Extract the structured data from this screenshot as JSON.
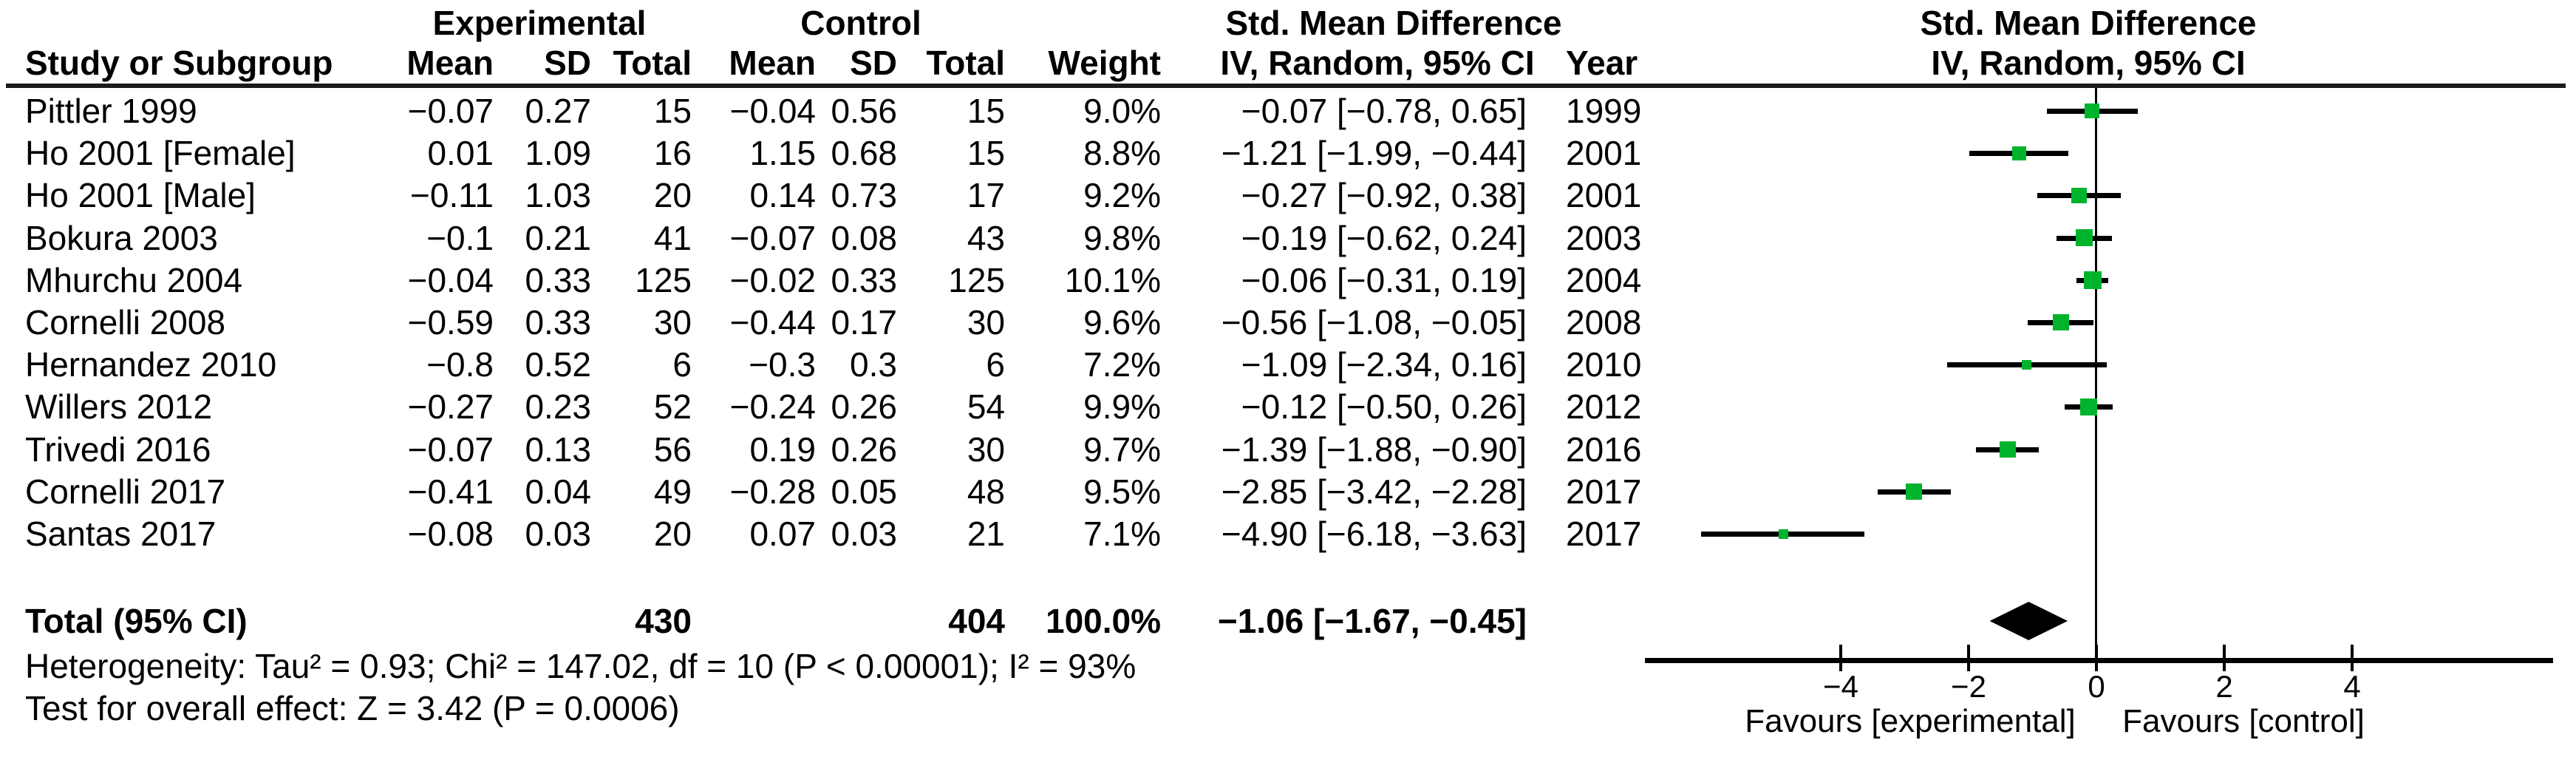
{
  "header": {
    "group_experimental": "Experimental",
    "group_control": "Control",
    "group_smd_left": "Std. Mean Difference",
    "group_smd_right": "Std. Mean Difference",
    "col_study": "Study or Subgroup",
    "col_mean_exp": "Mean",
    "col_sd_exp": "SD",
    "col_total_exp": "Total",
    "col_mean_ctrl": "Mean",
    "col_sd_ctrl": "SD",
    "col_total_ctrl": "Total",
    "col_weight": "Weight",
    "col_ci_left": "IV, Random, 95% CI",
    "col_year": "Year",
    "col_ci_right": "IV, Random, 95% CI"
  },
  "table": {
    "rows": [
      {
        "study": "Pittler 1999",
        "exp_mean": "−0.07",
        "exp_sd": "0.27",
        "exp_total": "15",
        "ctrl_mean": "−0.04",
        "ctrl_sd": "0.56",
        "ctrl_total": "15",
        "weight": "9.0%",
        "smd_ci": "−0.07 [−0.78, 0.65]",
        "year": "1999"
      },
      {
        "study": "Ho 2001 [Female]",
        "exp_mean": "0.01",
        "exp_sd": "1.09",
        "exp_total": "16",
        "ctrl_mean": "1.15",
        "ctrl_sd": "0.68",
        "ctrl_total": "15",
        "weight": "8.8%",
        "smd_ci": "−1.21 [−1.99, −0.44]",
        "year": "2001"
      },
      {
        "study": "Ho 2001 [Male]",
        "exp_mean": "−0.11",
        "exp_sd": "1.03",
        "exp_total": "20",
        "ctrl_mean": "0.14",
        "ctrl_sd": "0.73",
        "ctrl_total": "17",
        "weight": "9.2%",
        "smd_ci": "−0.27 [−0.92, 0.38]",
        "year": "2001"
      },
      {
        "study": "Bokura 2003",
        "exp_mean": "−0.1",
        "exp_sd": "0.21",
        "exp_total": "41",
        "ctrl_mean": "−0.07",
        "ctrl_sd": "0.08",
        "ctrl_total": "43",
        "weight": "9.8%",
        "smd_ci": "−0.19 [−0.62, 0.24]",
        "year": "2003"
      },
      {
        "study": "Mhurchu 2004",
        "exp_mean": "−0.04",
        "exp_sd": "0.33",
        "exp_total": "125",
        "ctrl_mean": "−0.02",
        "ctrl_sd": "0.33",
        "ctrl_total": "125",
        "weight": "10.1%",
        "smd_ci": "−0.06 [−0.31, 0.19]",
        "year": "2004"
      },
      {
        "study": "Cornelli 2008",
        "exp_mean": "−0.59",
        "exp_sd": "0.33",
        "exp_total": "30",
        "ctrl_mean": "−0.44",
        "ctrl_sd": "0.17",
        "ctrl_total": "30",
        "weight": "9.6%",
        "smd_ci": "−0.56 [−1.08, −0.05]",
        "year": "2008"
      },
      {
        "study": "Hernandez 2010",
        "exp_mean": "−0.8",
        "exp_sd": "0.52",
        "exp_total": "6",
        "ctrl_mean": "−0.3",
        "ctrl_sd": "0.3",
        "ctrl_total": "6",
        "weight": "7.2%",
        "smd_ci": "−1.09 [−2.34, 0.16]",
        "year": "2010"
      },
      {
        "study": "Willers 2012",
        "exp_mean": "−0.27",
        "exp_sd": "0.23",
        "exp_total": "52",
        "ctrl_mean": "−0.24",
        "ctrl_sd": "0.26",
        "ctrl_total": "54",
        "weight": "9.9%",
        "smd_ci": "−0.12 [−0.50, 0.26]",
        "year": "2012"
      },
      {
        "study": "Trivedi 2016",
        "exp_mean": "−0.07",
        "exp_sd": "0.13",
        "exp_total": "56",
        "ctrl_mean": "0.19",
        "ctrl_sd": "0.26",
        "ctrl_total": "30",
        "weight": "9.7%",
        "smd_ci": "−1.39 [−1.88, −0.90]",
        "year": "2016"
      },
      {
        "study": "Cornelli 2017",
        "exp_mean": "−0.41",
        "exp_sd": "0.04",
        "exp_total": "49",
        "ctrl_mean": "−0.28",
        "ctrl_sd": "0.05",
        "ctrl_total": "48",
        "weight": "9.5%",
        "smd_ci": "−2.85 [−3.42, −2.28]",
        "year": "2017"
      },
      {
        "study": "Santas 2017",
        "exp_mean": "−0.08",
        "exp_sd": "0.03",
        "exp_total": "20",
        "ctrl_mean": "0.07",
        "ctrl_sd": "0.03",
        "ctrl_total": "21",
        "weight": "7.1%",
        "smd_ci": "−4.90 [−6.18, −3.63]",
        "year": "2017"
      }
    ],
    "total": {
      "label": "Total (95% CI)",
      "exp_total": "430",
      "ctrl_total": "404",
      "weight": "100.0%",
      "smd_ci": "−1.06 [−1.67, −0.45]"
    }
  },
  "footer": {
    "heterogeneity": "Heterogeneity: Tau² = 0.93; Chi² = 147.02, df = 10 (P < 0.00001); I² = 93%",
    "overall_effect": "Test for overall effect: Z = 3.42 (P = 0.0006)"
  },
  "plot": {
    "tick_labels": [
      "−4",
      "−2",
      "0",
      "2",
      "4"
    ],
    "favours_left": "Favours [experimental]",
    "favours_right": "Favours [control]"
  },
  "colors": {
    "marker_green": "#00B32C",
    "line_black": "#000000",
    "background": "#FFFFFF"
  },
  "chart_data": {
    "type": "forest",
    "title": "Std. Mean Difference, IV, Random, 95% CI",
    "x_ticks": [
      -4,
      -2,
      0,
      2,
      4
    ],
    "xlim": [
      -7.05,
      7.15
    ],
    "zero_line": 0,
    "legend_position": "none",
    "grid": false,
    "xlabel_left": "Favours [experimental]",
    "xlabel_right": "Favours [control]",
    "studies": [
      {
        "name": "Pittler 1999",
        "smd": -0.07,
        "ci": [
          -0.78,
          0.65
        ],
        "weight_pct": 9.0,
        "year": 1999
      },
      {
        "name": "Ho 2001 [Female]",
        "smd": -1.21,
        "ci": [
          -1.99,
          -0.44
        ],
        "weight_pct": 8.8,
        "year": 2001
      },
      {
        "name": "Ho 2001 [Male]",
        "smd": -0.27,
        "ci": [
          -0.92,
          0.38
        ],
        "weight_pct": 9.2,
        "year": 2001
      },
      {
        "name": "Bokura 2003",
        "smd": -0.19,
        "ci": [
          -0.62,
          0.24
        ],
        "weight_pct": 9.8,
        "year": 2003
      },
      {
        "name": "Mhurchu 2004",
        "smd": -0.06,
        "ci": [
          -0.31,
          0.19
        ],
        "weight_pct": 10.1,
        "year": 2004
      },
      {
        "name": "Cornelli 2008",
        "smd": -0.56,
        "ci": [
          -1.08,
          -0.05
        ],
        "weight_pct": 9.6,
        "year": 2008
      },
      {
        "name": "Hernandez 2010",
        "smd": -1.09,
        "ci": [
          -2.34,
          0.16
        ],
        "weight_pct": 7.2,
        "year": 2010
      },
      {
        "name": "Willers 2012",
        "smd": -0.12,
        "ci": [
          -0.5,
          0.26
        ],
        "weight_pct": 9.9,
        "year": 2012
      },
      {
        "name": "Trivedi 2016",
        "smd": -1.39,
        "ci": [
          -1.88,
          -0.9
        ],
        "weight_pct": 9.7,
        "year": 2016
      },
      {
        "name": "Cornelli 2017",
        "smd": -2.85,
        "ci": [
          -3.42,
          -2.28
        ],
        "weight_pct": 9.5,
        "year": 2017
      },
      {
        "name": "Santas 2017",
        "smd": -4.9,
        "ci": [
          -6.18,
          -3.63
        ],
        "weight_pct": 7.1,
        "year": 2017
      }
    ],
    "summary": {
      "name": "Total (95% CI)",
      "smd": -1.06,
      "ci": [
        -1.67,
        -0.45
      ],
      "n_experimental": 430,
      "n_control": 404,
      "weight_pct": 100.0
    },
    "heterogeneity": {
      "tau2": 0.93,
      "chi2": 147.02,
      "df": 10,
      "p": "< 0.00001",
      "i2_pct": 93
    },
    "overall_effect": {
      "z": 3.42,
      "p": "0.0006"
    }
  }
}
